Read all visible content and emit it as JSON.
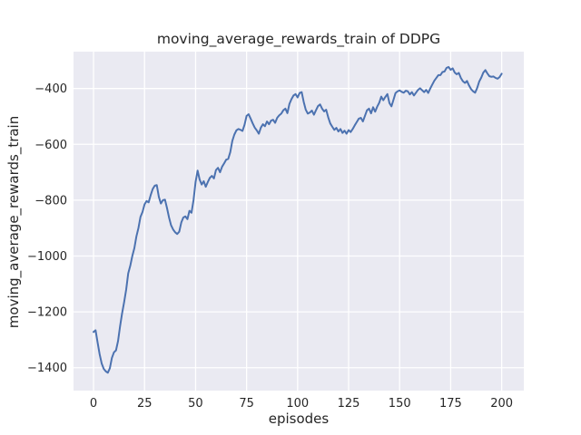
{
  "figure": {
    "background_color": "#ffffff"
  },
  "chart_data": {
    "type": "line",
    "title": "moving_average_rewards_train of DDPG",
    "xlabel": "episodes",
    "ylabel": "moving_average_rewards_train",
    "x_ticks": [
      0,
      25,
      50,
      75,
      100,
      125,
      150,
      175,
      200
    ],
    "y_ticks": [
      -400,
      -600,
      -800,
      -1000,
      -1200,
      -1400
    ],
    "xlim": [
      -9.8,
      210.85
    ],
    "ylim": [
      -1482,
      -268
    ],
    "grid": true,
    "legend": false,
    "style": {
      "plot_background": "#eaeaf2",
      "grid_color": "#ffffff",
      "line_color": "#4c72b0",
      "text_color": "#262626",
      "line_width": 2
    },
    "series": [
      {
        "name": "moving_average_rewards_train",
        "x_start": 0,
        "x_step": 1,
        "values": [
          -1272,
          -1266,
          -1310,
          -1352,
          -1385,
          -1404,
          -1413,
          -1418,
          -1402,
          -1365,
          -1345,
          -1338,
          -1305,
          -1252,
          -1205,
          -1165,
          -1120,
          -1062,
          -1035,
          -1000,
          -972,
          -930,
          -900,
          -860,
          -842,
          -815,
          -803,
          -808,
          -782,
          -760,
          -748,
          -746,
          -788,
          -812,
          -800,
          -798,
          -828,
          -862,
          -890,
          -905,
          -915,
          -921,
          -913,
          -880,
          -862,
          -858,
          -868,
          -838,
          -845,
          -800,
          -735,
          -694,
          -726,
          -744,
          -732,
          -752,
          -735,
          -720,
          -713,
          -722,
          -692,
          -684,
          -700,
          -680,
          -668,
          -655,
          -652,
          -628,
          -588,
          -565,
          -550,
          -545,
          -548,
          -552,
          -530,
          -498,
          -492,
          -508,
          -525,
          -540,
          -550,
          -562,
          -540,
          -528,
          -535,
          -518,
          -528,
          -515,
          -512,
          -523,
          -505,
          -496,
          -490,
          -478,
          -472,
          -488,
          -455,
          -438,
          -425,
          -420,
          -432,
          -416,
          -413,
          -448,
          -476,
          -490,
          -486,
          -479,
          -494,
          -478,
          -463,
          -457,
          -472,
          -482,
          -476,
          -503,
          -525,
          -537,
          -548,
          -541,
          -554,
          -545,
          -559,
          -551,
          -562,
          -549,
          -556,
          -545,
          -532,
          -520,
          -508,
          -505,
          -518,
          -498,
          -478,
          -472,
          -489,
          -467,
          -483,
          -465,
          -451,
          -429,
          -442,
          -430,
          -420,
          -452,
          -464,
          -440,
          -416,
          -410,
          -407,
          -412,
          -415,
          -408,
          -410,
          -421,
          -413,
          -425,
          -415,
          -405,
          -399,
          -406,
          -413,
          -405,
          -416,
          -400,
          -386,
          -372,
          -362,
          -352,
          -352,
          -341,
          -339,
          -326,
          -323,
          -333,
          -328,
          -343,
          -349,
          -344,
          -362,
          -374,
          -380,
          -373,
          -389,
          -402,
          -410,
          -415,
          -398,
          -375,
          -361,
          -343,
          -334,
          -346,
          -356,
          -358,
          -357,
          -362,
          -365,
          -359,
          -347
        ]
      }
    ]
  }
}
